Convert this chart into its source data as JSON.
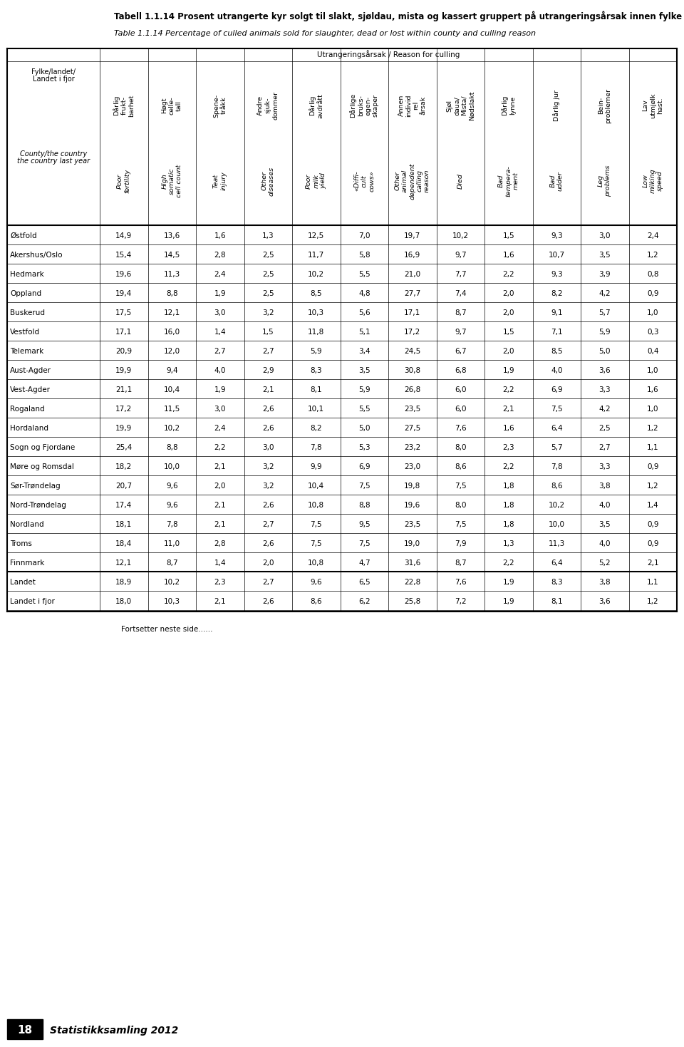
{
  "title_no": "Tabell 1.1.14 Prosent utrangerte kyr solgt til slakt, sjøldau, mista og kassert gruppert på utrangeringsårsak innen fylke",
  "title_en": "Table 1.1.14 Percentage of culled animals sold for slaughter, dead or lost within county and culling reason",
  "section_header": "Utrangeringsårsak / Reason for culling",
  "col_headers_no": [
    "Fylke/landet/\nLandet i fjor",
    "Dårlig\nfrukt-\nbarhet",
    "Høgt\ncelle-\ntall",
    "Spene-\ntråkk",
    "Andre\nsjuk-\ndommer",
    "Dårlig\navdrått",
    "Dårlige\nbruks-\negen-\nskaper",
    "Annen\nindivid\nrel\nårsak",
    "Sjøl\ndaua/\nMista/\nNødslakt",
    "Dårlig\nlynne",
    "Dårlig jur",
    "Bein-\nproblemer",
    "Lav\nutmjølk\nhast."
  ],
  "col_headers_en": [
    "County/the country\nthe country last year",
    "Poor\nfertility",
    "High\nsomatic\ncell count",
    "Teat\ninjury",
    "Other\ndiseases",
    "Poor\nmilk\nyield",
    "«Diffi-\ncult\ncows»",
    "Other\nanimal\ndependent\ncalling\nreason",
    "Died",
    "Bad\ntempera-\nment",
    "Bad\nudder",
    "Leg\nproblems",
    "Low\nmilking\nspeed"
  ],
  "rows": [
    [
      "Østfold",
      "14,9",
      "13,6",
      "1,6",
      "1,3",
      "12,5",
      "7,0",
      "19,7",
      "10,2",
      "1,5",
      "9,3",
      "3,0",
      "2,4"
    ],
    [
      "Akershus/Oslo",
      "15,4",
      "14,5",
      "2,8",
      "2,5",
      "11,7",
      "5,8",
      "16,9",
      "9,7",
      "1,6",
      "10,7",
      "3,5",
      "1,2"
    ],
    [
      "Hedmark",
      "19,6",
      "11,3",
      "2,4",
      "2,5",
      "10,2",
      "5,5",
      "21,0",
      "7,7",
      "2,2",
      "9,3",
      "3,9",
      "0,8"
    ],
    [
      "Oppland",
      "19,4",
      "8,8",
      "1,9",
      "2,5",
      "8,5",
      "4,8",
      "27,7",
      "7,4",
      "2,0",
      "8,2",
      "4,2",
      "0,9"
    ],
    [
      "Buskerud",
      "17,5",
      "12,1",
      "3,0",
      "3,2",
      "10,3",
      "5,6",
      "17,1",
      "8,7",
      "2,0",
      "9,1",
      "5,7",
      "1,0"
    ],
    [
      "Vestfold",
      "17,1",
      "16,0",
      "1,4",
      "1,5",
      "11,8",
      "5,1",
      "17,2",
      "9,7",
      "1,5",
      "7,1",
      "5,9",
      "0,3"
    ],
    [
      "Telemark",
      "20,9",
      "12,0",
      "2,7",
      "2,7",
      "5,9",
      "3,4",
      "24,5",
      "6,7",
      "2,0",
      "8,5",
      "5,0",
      "0,4"
    ],
    [
      "Aust-Agder",
      "19,9",
      "9,4",
      "4,0",
      "2,9",
      "8,3",
      "3,5",
      "30,8",
      "6,8",
      "1,9",
      "4,0",
      "3,6",
      "1,0"
    ],
    [
      "Vest-Agder",
      "21,1",
      "10,4",
      "1,9",
      "2,1",
      "8,1",
      "5,9",
      "26,8",
      "6,0",
      "2,2",
      "6,9",
      "3,3",
      "1,6"
    ],
    [
      "Rogaland",
      "17,2",
      "11,5",
      "3,0",
      "2,6",
      "10,1",
      "5,5",
      "23,5",
      "6,0",
      "2,1",
      "7,5",
      "4,2",
      "1,0"
    ],
    [
      "Hordaland",
      "19,9",
      "10,2",
      "2,4",
      "2,6",
      "8,2",
      "5,0",
      "27,5",
      "7,6",
      "1,6",
      "6,4",
      "2,5",
      "1,2"
    ],
    [
      "Sogn og Fjordane",
      "25,4",
      "8,8",
      "2,2",
      "3,0",
      "7,8",
      "5,3",
      "23,2",
      "8,0",
      "2,3",
      "5,7",
      "2,7",
      "1,1"
    ],
    [
      "Møre og Romsdal",
      "18,2",
      "10,0",
      "2,1",
      "3,2",
      "9,9",
      "6,9",
      "23,0",
      "8,6",
      "2,2",
      "7,8",
      "3,3",
      "0,9"
    ],
    [
      "Sør-Trøndelag",
      "20,7",
      "9,6",
      "2,0",
      "3,2",
      "10,4",
      "7,5",
      "19,8",
      "7,5",
      "1,8",
      "8,6",
      "3,8",
      "1,2"
    ],
    [
      "Nord-Trøndelag",
      "17,4",
      "9,6",
      "2,1",
      "2,6",
      "10,8",
      "8,8",
      "19,6",
      "8,0",
      "1,8",
      "10,2",
      "4,0",
      "1,4"
    ],
    [
      "Nordland",
      "18,1",
      "7,8",
      "2,1",
      "2,7",
      "7,5",
      "9,5",
      "23,5",
      "7,5",
      "1,8",
      "10,0",
      "3,5",
      "0,9"
    ],
    [
      "Troms",
      "18,4",
      "11,0",
      "2,8",
      "2,6",
      "7,5",
      "7,5",
      "19,0",
      "7,9",
      "1,3",
      "11,3",
      "4,0",
      "0,9"
    ],
    [
      "Finnmark",
      "12,1",
      "8,7",
      "1,4",
      "2,0",
      "10,8",
      "4,7",
      "31,6",
      "8,7",
      "2,2",
      "6,4",
      "5,2",
      "2,1"
    ],
    [
      "Landet",
      "18,9",
      "10,2",
      "2,3",
      "2,7",
      "9,6",
      "6,5",
      "22,8",
      "7,6",
      "1,9",
      "8,3",
      "3,8",
      "1,1"
    ],
    [
      "Landet i fjor",
      "18,0",
      "10,3",
      "2,1",
      "2,6",
      "8,6",
      "6,2",
      "25,8",
      "7,2",
      "1,9",
      "8,1",
      "3,6",
      "1,2"
    ]
  ],
  "footer": "Fortsetter neste side......",
  "page_num": "18",
  "journal": "Statistikksamling 2012",
  "bg_color": "#ffffff",
  "text_color": "#000000",
  "title_fontsize": 8.5,
  "header_fontsize": 7.0,
  "data_fontsize": 7.5
}
